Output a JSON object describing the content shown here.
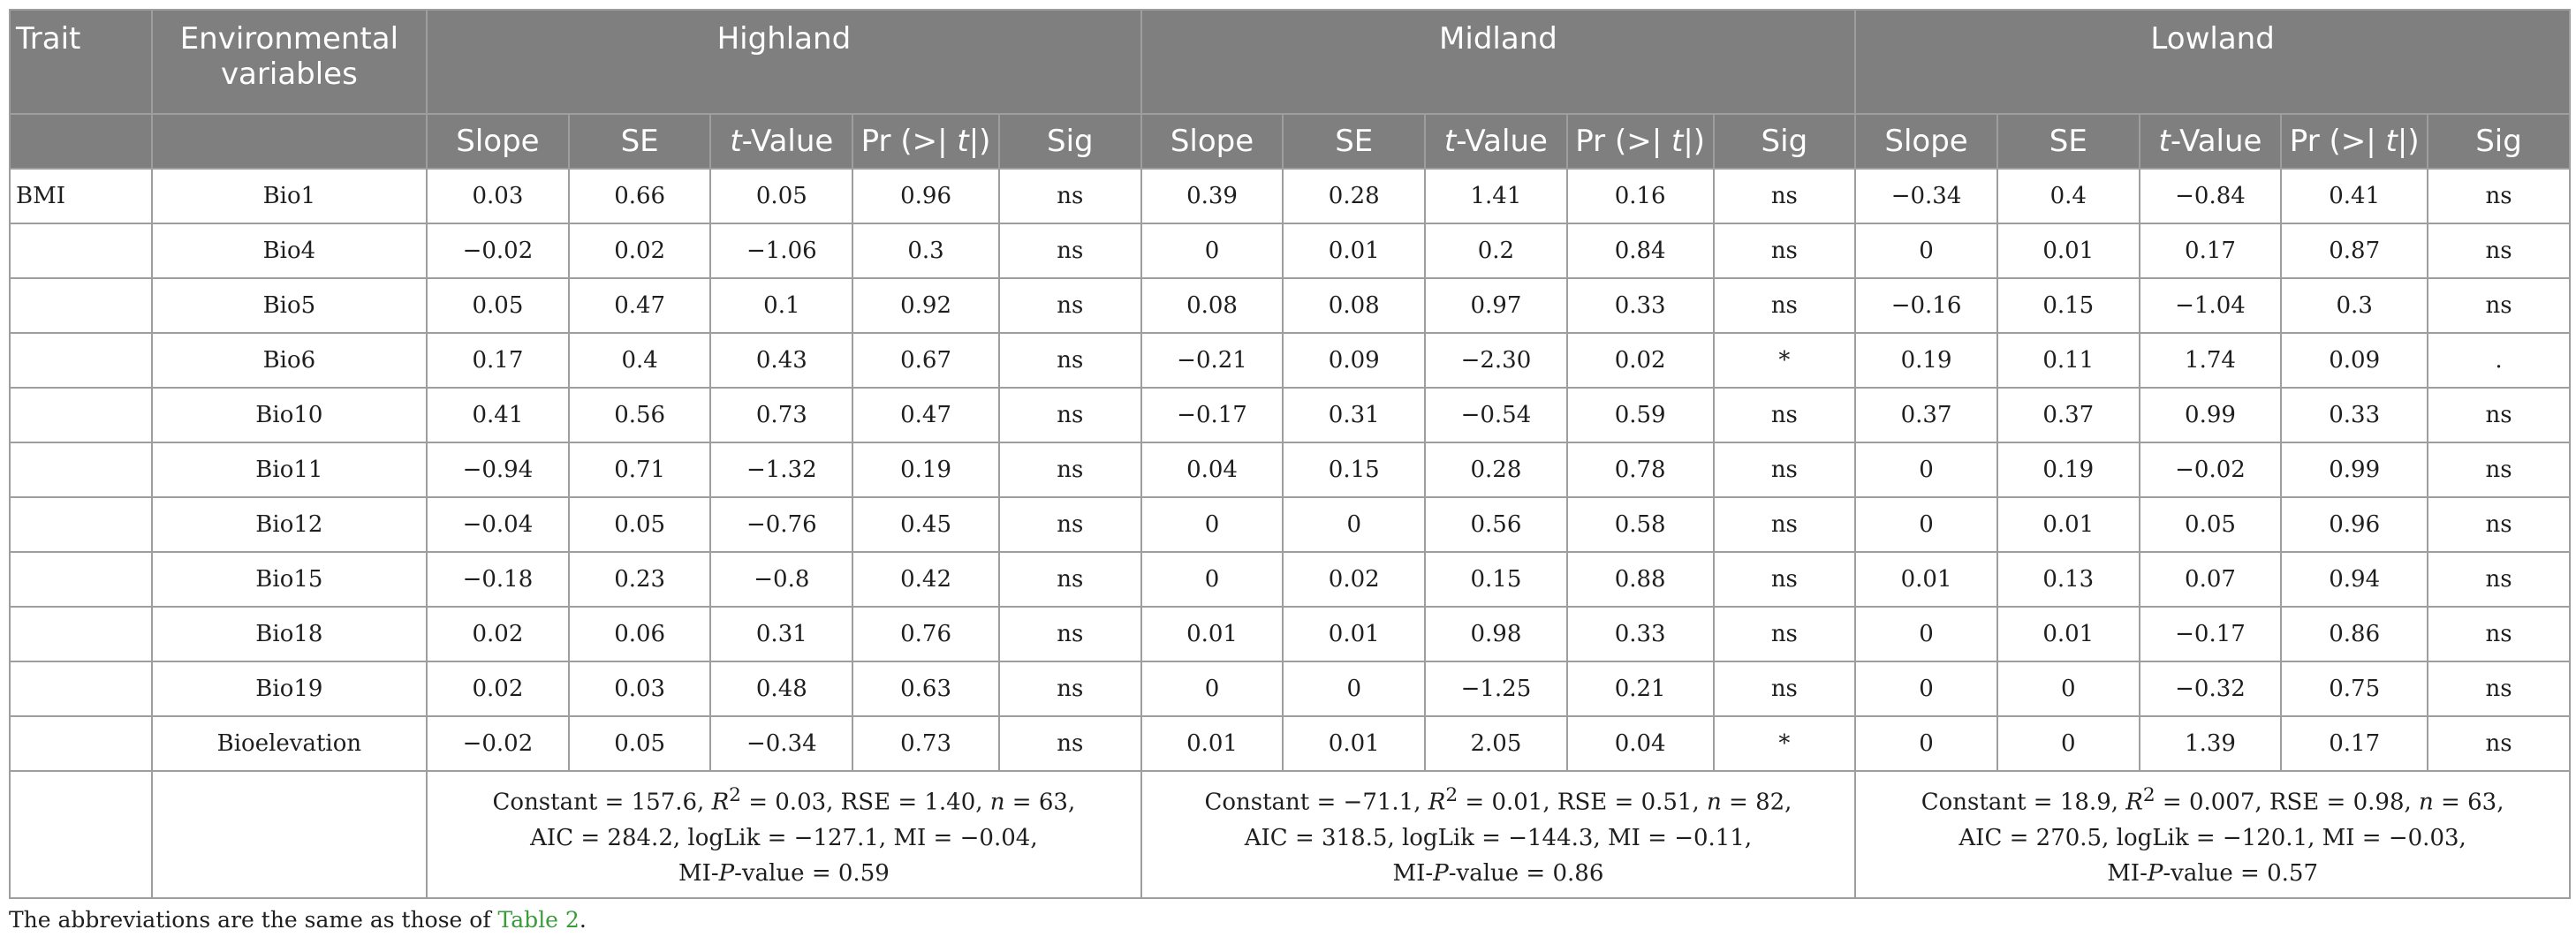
{
  "header": {
    "trait": "Trait",
    "env_line1": "Environmental",
    "env_line2": "variables",
    "groups": [
      "Highland",
      "Midland",
      "Lowland"
    ],
    "subcols": [
      "Slope",
      "SE",
      "t-Value",
      "Pr (>| t|)",
      "Sig"
    ]
  },
  "trait_name": "BMI",
  "rows": [
    {
      "var": "Bio1",
      "vals": [
        "0.03",
        "0.66",
        "0.05",
        "0.96",
        "ns",
        "0.39",
        "0.28",
        "1.41",
        "0.16",
        "ns",
        "−0.34",
        "0.4",
        "−0.84",
        "0.41",
        "ns"
      ]
    },
    {
      "var": "Bio4",
      "vals": [
        "−0.02",
        "0.02",
        "−1.06",
        "0.3",
        "ns",
        "0",
        "0.01",
        "0.2",
        "0.84",
        "ns",
        "0",
        "0.01",
        "0.17",
        "0.87",
        "ns"
      ]
    },
    {
      "var": "Bio5",
      "vals": [
        "0.05",
        "0.47",
        "0.1",
        "0.92",
        "ns",
        "0.08",
        "0.08",
        "0.97",
        "0.33",
        "ns",
        "−0.16",
        "0.15",
        "−1.04",
        "0.3",
        "ns"
      ]
    },
    {
      "var": "Bio6",
      "vals": [
        "0.17",
        "0.4",
        "0.43",
        "0.67",
        "ns",
        "−0.21",
        "0.09",
        "−2.30",
        "0.02",
        "*",
        "0.19",
        "0.11",
        "1.74",
        "0.09",
        "."
      ]
    },
    {
      "var": "Bio10",
      "vals": [
        "0.41",
        "0.56",
        "0.73",
        "0.47",
        "ns",
        "−0.17",
        "0.31",
        "−0.54",
        "0.59",
        "ns",
        "0.37",
        "0.37",
        "0.99",
        "0.33",
        "ns"
      ]
    },
    {
      "var": "Bio11",
      "vals": [
        "−0.94",
        "0.71",
        "−1.32",
        "0.19",
        "ns",
        "0.04",
        "0.15",
        "0.28",
        "0.78",
        "ns",
        "0",
        "0.19",
        "−0.02",
        "0.99",
        "ns"
      ]
    },
    {
      "var": "Bio12",
      "vals": [
        "−0.04",
        "0.05",
        "−0.76",
        "0.45",
        "ns",
        "0",
        "0",
        "0.56",
        "0.58",
        "ns",
        "0",
        "0.01",
        "0.05",
        "0.96",
        "ns"
      ]
    },
    {
      "var": "Bio15",
      "vals": [
        "−0.18",
        "0.23",
        "−0.8",
        "0.42",
        "ns",
        "0",
        "0.02",
        "0.15",
        "0.88",
        "ns",
        "0.01",
        "0.13",
        "0.07",
        "0.94",
        "ns"
      ]
    },
    {
      "var": "Bio18",
      "vals": [
        "0.02",
        "0.06",
        "0.31",
        "0.76",
        "ns",
        "0.01",
        "0.01",
        "0.98",
        "0.33",
        "ns",
        "0",
        "0.01",
        "−0.17",
        "0.86",
        "ns"
      ]
    },
    {
      "var": "Bio19",
      "vals": [
        "0.02",
        "0.03",
        "0.48",
        "0.63",
        "ns",
        "0",
        "0",
        "−1.25",
        "0.21",
        "ns",
        "0",
        "0",
        "−0.32",
        "0.75",
        "ns"
      ]
    },
    {
      "var": "Bioelevation",
      "vals": [
        "−0.02",
        "0.05",
        "−0.34",
        "0.73",
        "ns",
        "0.01",
        "0.01",
        "2.05",
        "0.04",
        "*",
        "0",
        "0",
        "1.39",
        "0.17",
        "ns"
      ]
    }
  ],
  "model_stats": [
    {
      "constant": "157.6",
      "r2": "0.03",
      "rse": "1.40",
      "n": "63",
      "aic": "284.2",
      "loglik": "−127.1",
      "mi": "−0.04",
      "mi_p": "0.59"
    },
    {
      "constant": "−71.1",
      "r2": "0.01",
      "rse": "0.51",
      "n": "82",
      "aic": "318.5",
      "loglik": "−144.3",
      "mi": "−0.11",
      "mi_p": "0.86"
    },
    {
      "constant": "18.9",
      "r2": "0.007",
      "rse": "0.98",
      "n": "63",
      "aic": "270.5",
      "loglik": "−120.1",
      "mi": "−0.03",
      "mi_p": "0.57"
    }
  ],
  "footnote": {
    "text": "The abbreviations are the same as those of ",
    "link": "Table 2",
    "end": "."
  },
  "colors": {
    "header_bg": "#7f7f7f",
    "border": "#9e9e9e",
    "link": "#3a9b3a"
  }
}
